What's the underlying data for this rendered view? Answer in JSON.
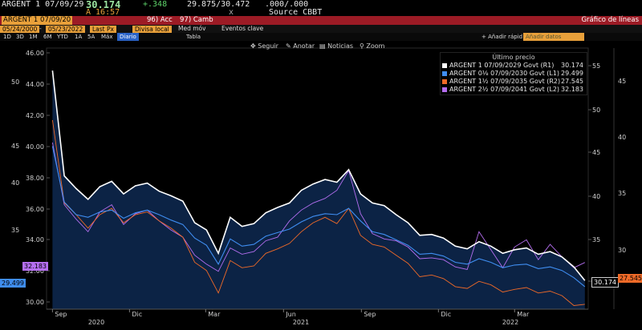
{
  "header": {
    "ticker": "ARGENT 1 07/09/29",
    "price": "30.174",
    "change": "+.348",
    "time": "A 16:57",
    "bid_ask": "29.875/30.472",
    "size": ".000/.000",
    "sep": "x",
    "source": "Source CBBT"
  },
  "toolbar": {
    "security_box": "ARGENT 1 07/09/20",
    "acc_label": "96) Acc",
    "camb_label": "97) Camb",
    "title": "Gráfico de líneas",
    "start_date": "05/24/2000",
    "end_date": "05/23/2022",
    "field": "Last Px",
    "currency": "Divisa local",
    "med_mov": "Med móv",
    "eventos": "Eventos clave"
  },
  "tabs": {
    "periods": [
      "1D",
      "3D",
      "1M",
      "6M",
      "YTD",
      "1A",
      "5A",
      "Máx"
    ],
    "frequency": "Diario",
    "tabla": "Tabla",
    "anadir": "+ Añadir rápid",
    "anadir_datos": "Añadir datos"
  },
  "chart_tools": {
    "seguir": "Seguir",
    "anotar": "Anotar",
    "noticias": "Noticias",
    "zoom": "Zoom"
  },
  "colors": {
    "series_r1": "#ffffff",
    "series_l1": "#3f8df0",
    "series_r2": "#f06a28",
    "series_l2": "#b46ef0",
    "area_fill": "#0c2345",
    "red_bar": "#9c1b25",
    "orange_box": "#e8a03a"
  },
  "chart_data": {
    "type": "line",
    "x": [
      "2020-09-01",
      "2020-09-15",
      "2020-09-29",
      "2020-10-13",
      "2020-10-27",
      "2020-11-10",
      "2020-11-24",
      "2020-12-08",
      "2020-12-22",
      "2021-01-05",
      "2021-01-19",
      "2021-02-02",
      "2021-02-16",
      "2021-03-02",
      "2021-03-16",
      "2021-03-30",
      "2021-04-13",
      "2021-04-27",
      "2021-05-11",
      "2021-05-25",
      "2021-06-08",
      "2021-06-22",
      "2021-07-06",
      "2021-07-20",
      "2021-08-03",
      "2021-08-17",
      "2021-08-31",
      "2021-09-14",
      "2021-09-28",
      "2021-10-12",
      "2021-10-26",
      "2021-11-09",
      "2021-11-23",
      "2021-12-07",
      "2021-12-21",
      "2022-01-04",
      "2022-01-18",
      "2022-02-01",
      "2022-02-15",
      "2022-03-01",
      "2022-03-15",
      "2022-03-29",
      "2022-04-12",
      "2022-04-26",
      "2022-05-10",
      "2022-05-23"
    ],
    "x_tick_labels": [
      "Sep",
      "Dic",
      "Mar",
      "Jun",
      "Sep",
      "Dic",
      "Mar"
    ],
    "year_labels": [
      "2020",
      "2021",
      "2022"
    ],
    "left_axis_ticks": [
      "46.00",
      "44.00",
      "42.00",
      "40.00",
      "38.00",
      "36.00",
      "34.00",
      "32.00",
      "30.00"
    ],
    "left_axis_ticks_outer": [
      "50",
      "45",
      "40",
      "35"
    ],
    "right_axis_ticks_inner": [
      "55",
      "50",
      "45",
      "40",
      "35",
      "30"
    ],
    "right_axis_ticks_outer": [
      "45",
      "40",
      "35",
      "30"
    ],
    "legend_header": "Último precio",
    "series": [
      {
        "name": "ARGENT 1 07/09/2029 Govt (R1)",
        "last": "30.174",
        "axis": "R1",
        "values": [
          53.5,
          41.8,
          40.4,
          39.2,
          40.6,
          41.2,
          39.8,
          40.7,
          41.0,
          40.1,
          39.6,
          39.0,
          36.6,
          35.8,
          33.2,
          37.2,
          36.2,
          36.5,
          37.7,
          38.3,
          38.8,
          40.2,
          40.9,
          41.4,
          41.1,
          42.5,
          39.8,
          38.8,
          38.5,
          37.5,
          36.6,
          35.2,
          35.3,
          34.9,
          34.0,
          33.7,
          34.5,
          34.0,
          33.2,
          33.6,
          33.8,
          33.1,
          33.4,
          32.8,
          31.7,
          30.174
        ]
      },
      {
        "name": "ARGENT 0⅛ 07/09/2030 Govt (L1)",
        "last": "29.499",
        "axis": "L1",
        "values": [
          45.1,
          38.9,
          37.5,
          37.2,
          37.8,
          38.0,
          37.1,
          37.7,
          38.0,
          37.5,
          36.9,
          36.4,
          34.9,
          34.1,
          32.0,
          34.8,
          34.0,
          34.2,
          35.1,
          35.5,
          35.9,
          36.7,
          37.3,
          37.6,
          37.5,
          38.2,
          36.8,
          35.6,
          35.3,
          34.7,
          34.1,
          33.1,
          33.2,
          32.9,
          32.2,
          32.0,
          32.6,
          32.2,
          31.6,
          31.9,
          32.0,
          31.5,
          31.7,
          31.3,
          30.5,
          29.499
        ]
      },
      {
        "name": "ARGENT 1½ 07/09/2035 Govt (R2)",
        "last": "27.545",
        "axis": "R2",
        "values": [
          48.0,
          38.8,
          37.5,
          36.0,
          37.5,
          38.2,
          36.6,
          37.5,
          37.8,
          36.8,
          36.0,
          35.0,
          32.2,
          31.3,
          28.8,
          32.4,
          31.6,
          31.8,
          33.2,
          33.7,
          34.3,
          35.6,
          36.6,
          37.2,
          36.5,
          38.2,
          35.2,
          34.2,
          33.9,
          33.0,
          32.1,
          30.6,
          30.8,
          30.4,
          29.5,
          29.3,
          30.1,
          29.7,
          28.9,
          29.2,
          29.4,
          28.8,
          29.0,
          28.5,
          27.4,
          27.545
        ]
      },
      {
        "name": "ARGENT 2½ 07/09/2041 Govt (L2)",
        "last": "32.183",
        "axis": "L2",
        "values": [
          45.5,
          38.6,
          37.0,
          35.6,
          37.8,
          38.6,
          36.4,
          37.6,
          38.0,
          36.8,
          35.8,
          35.0,
          33.0,
          32.0,
          31.2,
          33.8,
          33.1,
          33.4,
          34.6,
          35.0,
          36.8,
          38.0,
          38.8,
          39.3,
          40.2,
          42.4,
          37.6,
          35.4,
          34.8,
          34.6,
          33.9,
          32.6,
          32.7,
          32.5,
          31.7,
          31.4,
          35.6,
          33.6,
          31.6,
          33.9,
          34.7,
          32.5,
          34.2,
          32.8,
          31.6,
          32.183
        ]
      }
    ]
  }
}
